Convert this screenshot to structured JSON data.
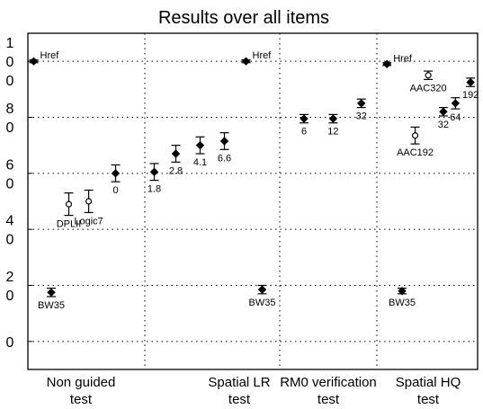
{
  "chart_data": {
    "type": "scatter",
    "title": "Results over all items",
    "ylim": [
      -10,
      110
    ],
    "grid": true,
    "y_ticks": [
      {
        "value": 100,
        "lines": [
          "1",
          "0",
          "0"
        ]
      },
      {
        "value": 80,
        "lines": [
          "8",
          "0"
        ]
      },
      {
        "value": 60,
        "lines": [
          "6",
          "0"
        ]
      },
      {
        "value": 40,
        "lines": [
          "4",
          "0"
        ]
      },
      {
        "value": 20,
        "lines": [
          "2",
          "0"
        ]
      },
      {
        "value": 0,
        "lines": [
          "0"
        ]
      }
    ],
    "groups": [
      {
        "name": "Non guided test",
        "lines": [
          "Non guided",
          "test"
        ]
      },
      {
        "name": "Spatial LR test",
        "lines": [
          "Spatial LR",
          "test"
        ]
      },
      {
        "name": "RM0 verification test",
        "lines": [
          "RM0 verification",
          "test"
        ]
      },
      {
        "name": "Spatial HQ test",
        "lines": [
          "Spatial HQ",
          "test"
        ]
      }
    ],
    "points": [
      {
        "group": 0,
        "pos": 0.05,
        "label": "Href",
        "mean": 100,
        "low": 99.5,
        "high": 100.5,
        "marker": "filled",
        "label_side": "right"
      },
      {
        "group": 0,
        "pos": 0.2,
        "label": "BW35",
        "mean": 17.5,
        "low": 16,
        "high": 19,
        "marker": "filled",
        "label_side": "below"
      },
      {
        "group": 0,
        "pos": 0.35,
        "label": "DPLII",
        "mean": 49,
        "low": 45,
        "high": 53,
        "marker": "open",
        "label_side": "below"
      },
      {
        "group": 0,
        "pos": 0.52,
        "label": "Logic7",
        "mean": 50,
        "low": 46,
        "high": 54,
        "marker": "open",
        "label_side": "below"
      },
      {
        "group": 0,
        "pos": 0.75,
        "label": "0",
        "mean": 60,
        "low": 57,
        "high": 63,
        "marker": "filled",
        "label_side": "below"
      },
      {
        "group": 1,
        "pos": 0.07,
        "label": "1.8",
        "mean": 60.5,
        "low": 57.5,
        "high": 63.5,
        "marker": "filled",
        "label_side": "below"
      },
      {
        "group": 1,
        "pos": 0.23,
        "label": "2.8",
        "mean": 67,
        "low": 64,
        "high": 70,
        "marker": "filled",
        "label_side": "below"
      },
      {
        "group": 1,
        "pos": 0.41,
        "label": "4.1",
        "mean": 70,
        "low": 67,
        "high": 73,
        "marker": "filled",
        "label_side": "below"
      },
      {
        "group": 1,
        "pos": 0.59,
        "label": "6.6",
        "mean": 71.5,
        "low": 68.5,
        "high": 74.5,
        "marker": "filled",
        "label_side": "below"
      },
      {
        "group": 1,
        "pos": 0.75,
        "label": "Href",
        "mean": 100,
        "low": 99.5,
        "high": 100.5,
        "marker": "filled",
        "label_side": "right"
      },
      {
        "group": 1,
        "pos": 0.87,
        "label": "BW35",
        "mean": 18.5,
        "low": 17,
        "high": 20,
        "marker": "filled",
        "label_side": "below"
      },
      {
        "group": 2,
        "pos": 0.25,
        "label": "6",
        "mean": 79.5,
        "low": 78,
        "high": 81,
        "marker": "filled",
        "label_side": "below"
      },
      {
        "group": 2,
        "pos": 0.55,
        "label": "12",
        "mean": 79.5,
        "low": 78,
        "high": 81,
        "marker": "filled",
        "label_side": "below"
      },
      {
        "group": 2,
        "pos": 0.84,
        "label": "32",
        "mean": 85,
        "low": 83.5,
        "high": 86.5,
        "marker": "filled",
        "label_side": "below"
      },
      {
        "group": 3,
        "pos": 0.1,
        "label": "Href",
        "mean": 99,
        "low": 98.5,
        "high": 99.5,
        "marker": "filled",
        "label_side": "right"
      },
      {
        "group": 3,
        "pos": 0.25,
        "label": "BW35",
        "mean": 18,
        "low": 17,
        "high": 19,
        "marker": "filled",
        "label_side": "below"
      },
      {
        "group": 3,
        "pos": 0.38,
        "label": "AAC192",
        "mean": 73.5,
        "low": 70.5,
        "high": 76.5,
        "marker": "open",
        "label_side": "below"
      },
      {
        "group": 3,
        "pos": 0.51,
        "label": "AAC320",
        "mean": 95,
        "low": 93.5,
        "high": 96.5,
        "marker": "open",
        "label_side": "below"
      },
      {
        "group": 3,
        "pos": 0.66,
        "label": "32",
        "mean": 82,
        "low": 80.5,
        "high": 83.5,
        "marker": "filled",
        "label_side": "below"
      },
      {
        "group": 3,
        "pos": 0.78,
        "label": "64",
        "mean": 85,
        "low": 83,
        "high": 87,
        "marker": "filled",
        "label_side": "below"
      },
      {
        "group": 3,
        "pos": 0.93,
        "label": "192",
        "mean": 92.5,
        "low": 91,
        "high": 94,
        "marker": "filled",
        "label_side": "below"
      }
    ]
  }
}
